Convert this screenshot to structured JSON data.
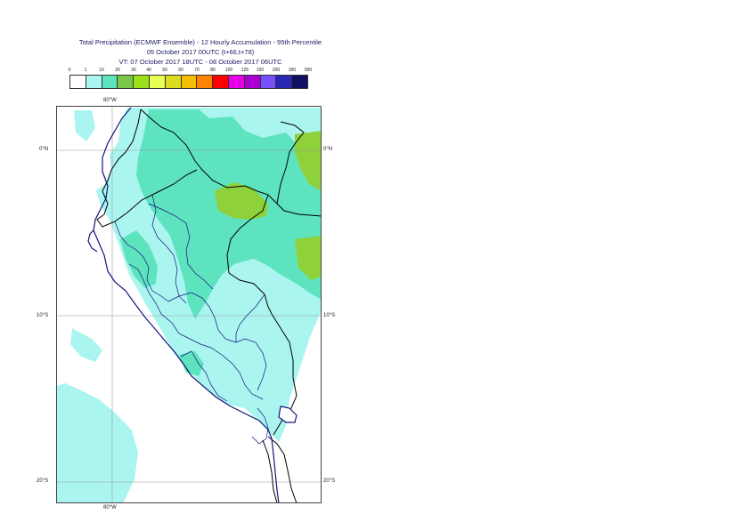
{
  "title": {
    "line1": "Total Precipitation (ECMWF Ensemble) - 12 Hourly Accumulation - 95th Percentile",
    "line2": "05 October 2017 00UTC (t+66,t+78)",
    "line3": "VT: 07 October 2017 18UTC - 08 October 2017 06UTC"
  },
  "legend": {
    "thresholds": [
      "0",
      "1",
      "10",
      "20",
      "30",
      "40",
      "50",
      "60",
      "70",
      "80",
      "100",
      "125",
      "150",
      "200",
      "300",
      "500"
    ],
    "colors": [
      "#ffffff",
      "#aaf5f0",
      "#5ee3bf",
      "#78c848",
      "#9ae11c",
      "#e6ff50",
      "#dcdc1e",
      "#f5be00",
      "#ff8200",
      "#ff0000",
      "#e600e6",
      "#aa00d2",
      "#7850ff",
      "#2828b4",
      "#101060"
    ]
  },
  "map": {
    "lon_labels": {
      "top": "80°W",
      "bottom": "80°W"
    },
    "lat_labels": {
      "eq": "0°N",
      "s10": "10°S",
      "s20": "20°S"
    },
    "colors": {
      "light": "#aaf5f0",
      "medium": "#5ee3bf",
      "heavy": "#8fd13a",
      "coast": "#15157a",
      "border": "#000000",
      "grid": "#9a9a9a"
    }
  }
}
